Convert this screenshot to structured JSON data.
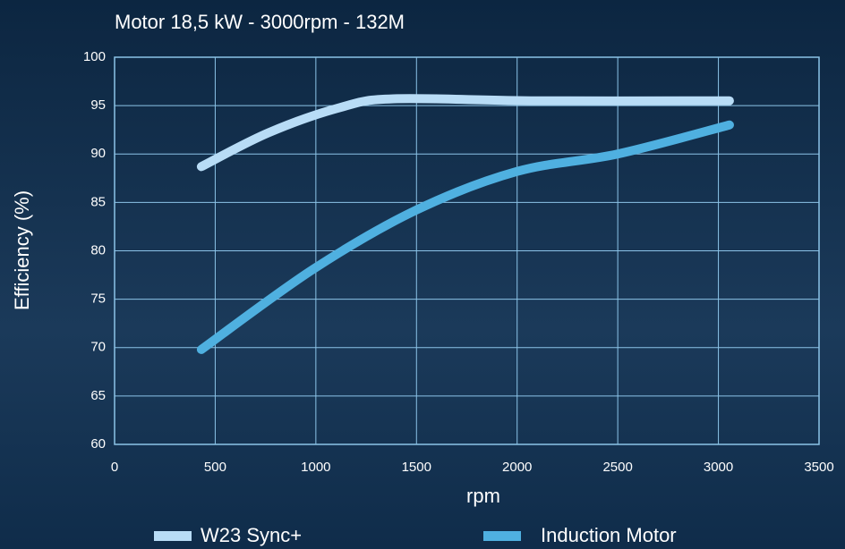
{
  "chart_data": {
    "type": "line",
    "title": "Motor 18,5 kW - 3000rpm - 132M",
    "xlabel": "rpm",
    "ylabel": "Efficiency (%)",
    "xlim": [
      0,
      3500
    ],
    "xticks": [
      0,
      500,
      1000,
      1500,
      2000,
      2500,
      3000,
      3500
    ],
    "ylim": [
      60,
      100
    ],
    "yticks": [
      60,
      65,
      70,
      75,
      80,
      85,
      90,
      95,
      100
    ],
    "grid": true,
    "series": [
      {
        "name": "W23 Sync+",
        "color": "#b8dcf6",
        "x": [
          431,
          765,
          1120,
          1387,
          2099,
          3055
        ],
        "values": [
          88.7,
          92.2,
          94.8,
          95.7,
          95.5,
          95.5
        ]
      },
      {
        "name": "Induction Motor",
        "color": "#4fb0e0",
        "x": [
          431,
          987,
          1498,
          2000,
          2499,
          3055
        ],
        "values": [
          69.8,
          78.1,
          84.2,
          88.2,
          90.0,
          93.0
        ]
      }
    ]
  }
}
